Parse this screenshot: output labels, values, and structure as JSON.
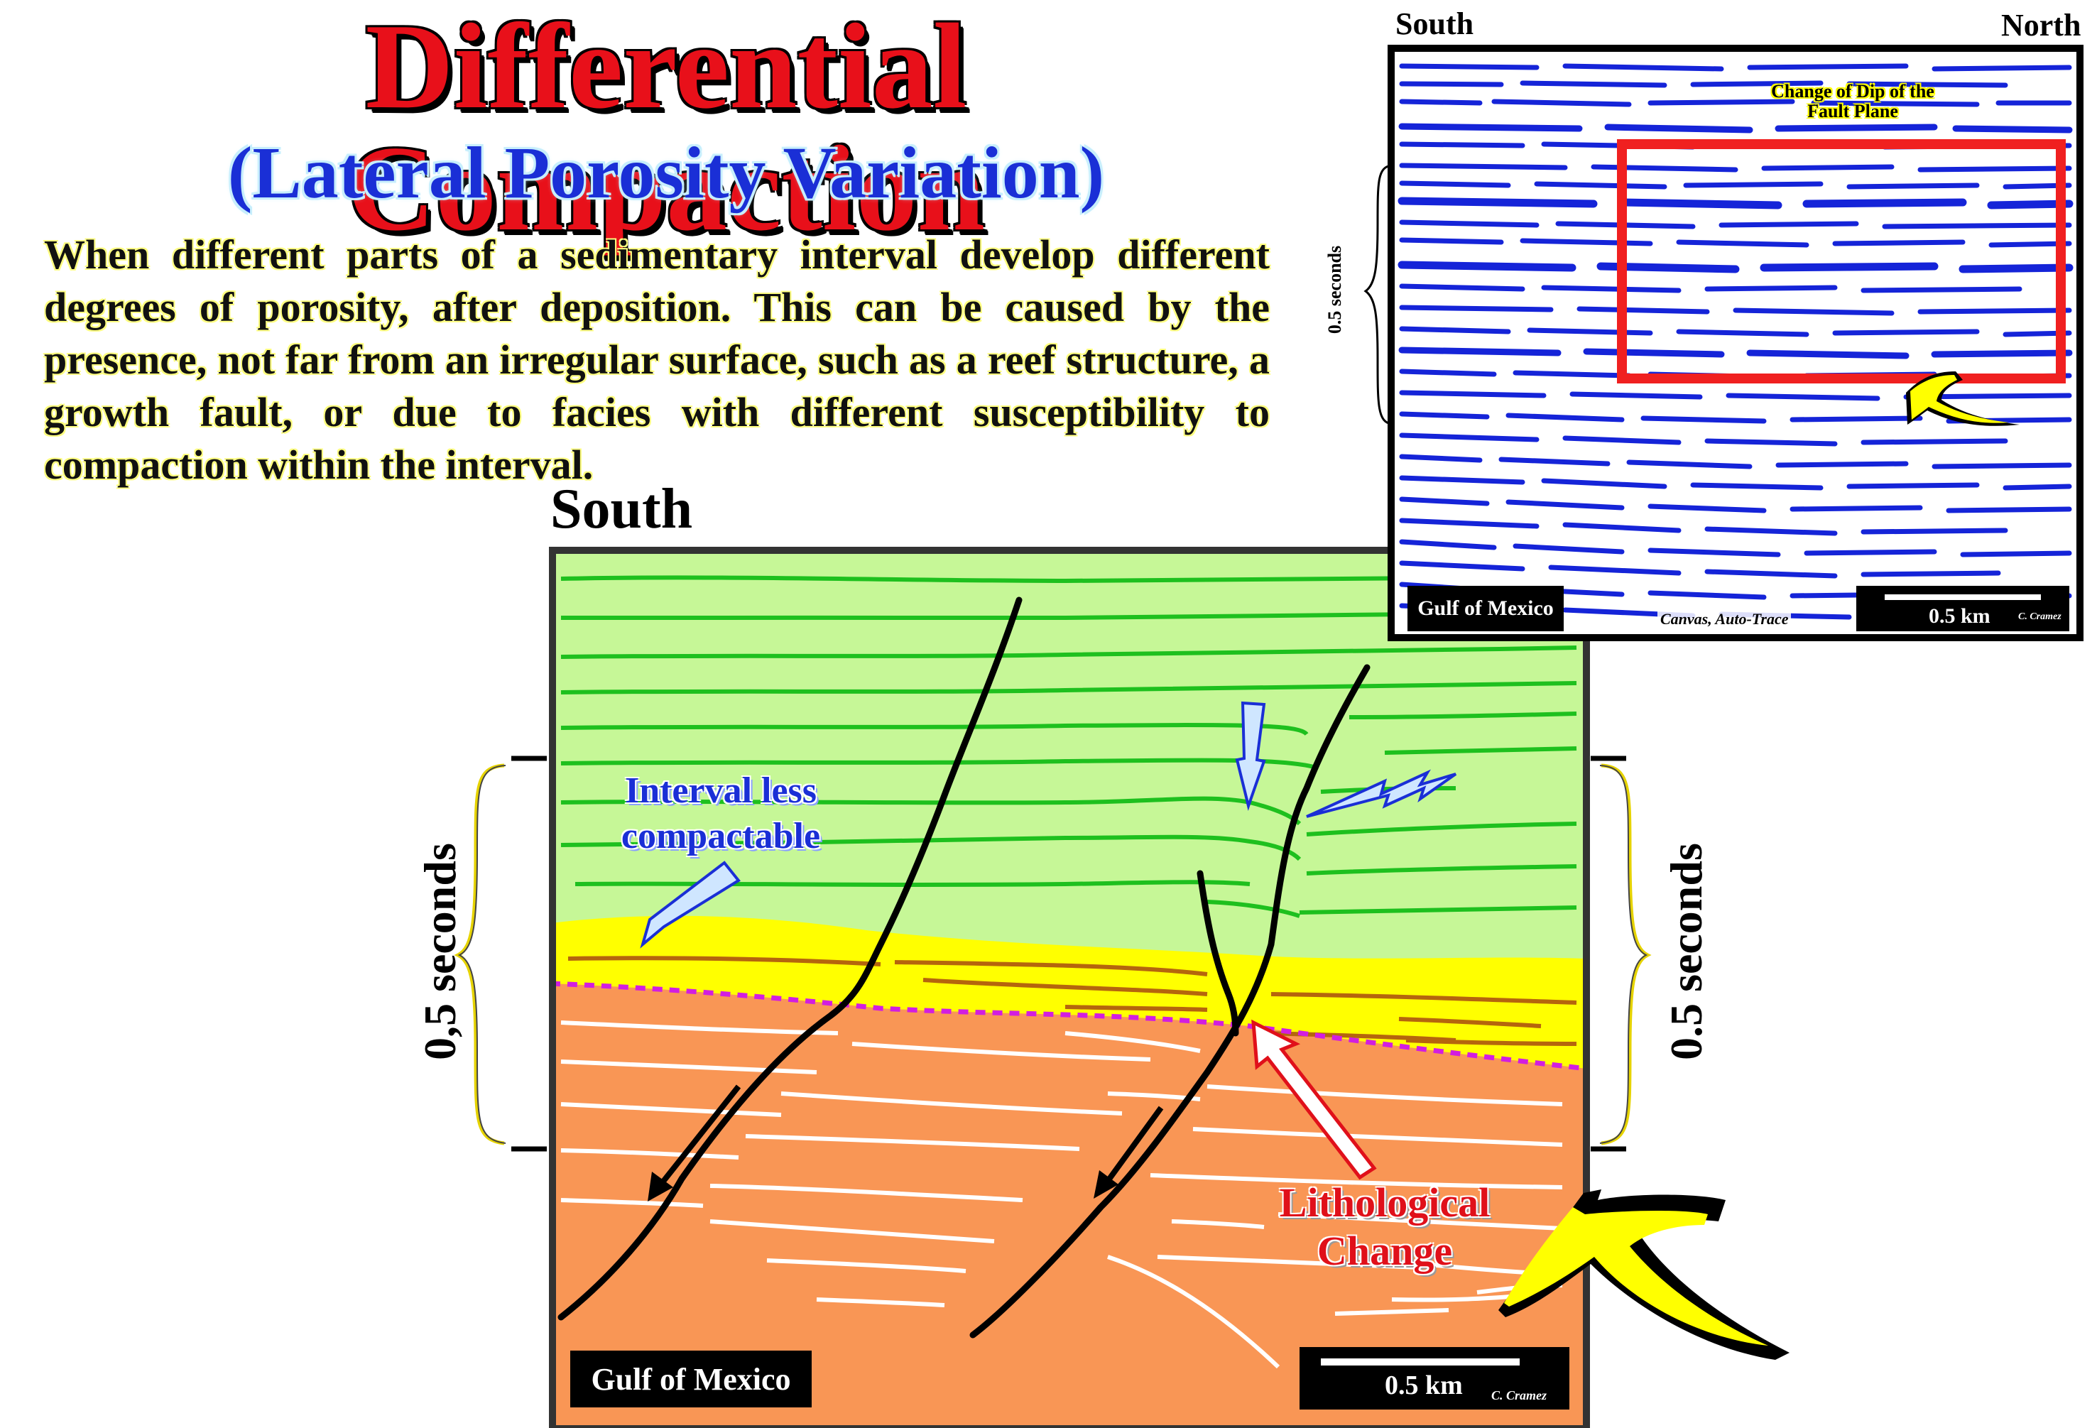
{
  "title": "Differential Compaction",
  "subtitle": "(Lateral Porosity Variation)",
  "description": "When different parts of a sedimentary interval develop different degrees of porosity, after deposition. This can be caused by the presence, not far from an irregular surface, such as a reef structure, a growth fault, or due to facies with different susceptibility to compaction within the interval.",
  "main_diagram": {
    "south_label": "South",
    "annotation_less_compactable": "Interval less compactable",
    "annotation_lithological": "Lithological Change",
    "left_scale_label": "0,5 seconds",
    "right_scale_label": "0.5 seconds",
    "location_label": "Gulf of Mexico",
    "scale_bar_label": "0.5 km",
    "author_label": "C. Cramez",
    "colors": {
      "upper_layer": "#c6f797",
      "reservoir_layer": "#ffff00",
      "lower_layer": "#f99655",
      "reflector_green": "#1ec01e",
      "reflector_brown": "#b5650d",
      "unconformity": "#d21ee0"
    }
  },
  "inset": {
    "south_label": "South",
    "north_label": "North",
    "annotation": "Change of Dip of the Fault Plane",
    "scale_label": "0.5 seconds",
    "location_label": "Gulf of Mexico",
    "software_label": "Canvas, Auto-Trace",
    "scale_bar_label": "0.5 km",
    "author_label": "C. Cramez"
  }
}
